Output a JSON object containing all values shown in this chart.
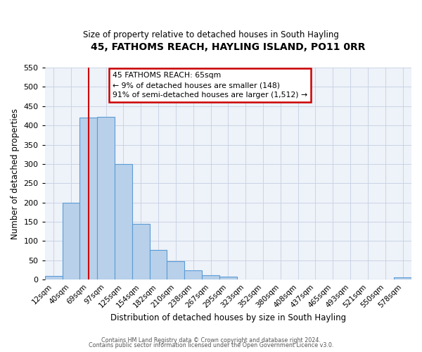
{
  "title": "45, FATHOMS REACH, HAYLING ISLAND, PO11 0RR",
  "subtitle": "Size of property relative to detached houses in South Hayling",
  "xlabel": "Distribution of detached houses by size in South Hayling",
  "ylabel": "Number of detached properties",
  "categories": [
    "12sqm",
    "40sqm",
    "69sqm",
    "97sqm",
    "125sqm",
    "154sqm",
    "182sqm",
    "210sqm",
    "238sqm",
    "267sqm",
    "295sqm",
    "323sqm",
    "352sqm",
    "380sqm",
    "408sqm",
    "437sqm",
    "465sqm",
    "493sqm",
    "521sqm",
    "550sqm",
    "578sqm"
  ],
  "bar_values": [
    10,
    200,
    420,
    422,
    300,
    145,
    78,
    48,
    25,
    12,
    8,
    0,
    0,
    0,
    0,
    0,
    0,
    0,
    0,
    0,
    5
  ],
  "bar_color": "#b8d0ea",
  "bar_edge_color": "#5b9bd5",
  "ylim": [
    0,
    550
  ],
  "yticks": [
    0,
    50,
    100,
    150,
    200,
    250,
    300,
    350,
    400,
    450,
    500,
    550
  ],
  "vline_category_idx": 2,
  "vline_color": "#cc0000",
  "annotation_title": "45 FATHOMS REACH: 65sqm",
  "annotation_line1": "← 9% of detached houses are smaller (148)",
  "annotation_line2": "91% of semi-detached houses are larger (1,512) →",
  "annotation_box_color": "#ffffff",
  "annotation_box_edge": "#cc0000",
  "footer_line1": "Contains HM Land Registry data © Crown copyright and database right 2024.",
  "footer_line2": "Contains public sector information licensed under the Open Government Licence v3.0.",
  "bg_color": "#eef2f9",
  "grid_color": "#c5d0e0"
}
